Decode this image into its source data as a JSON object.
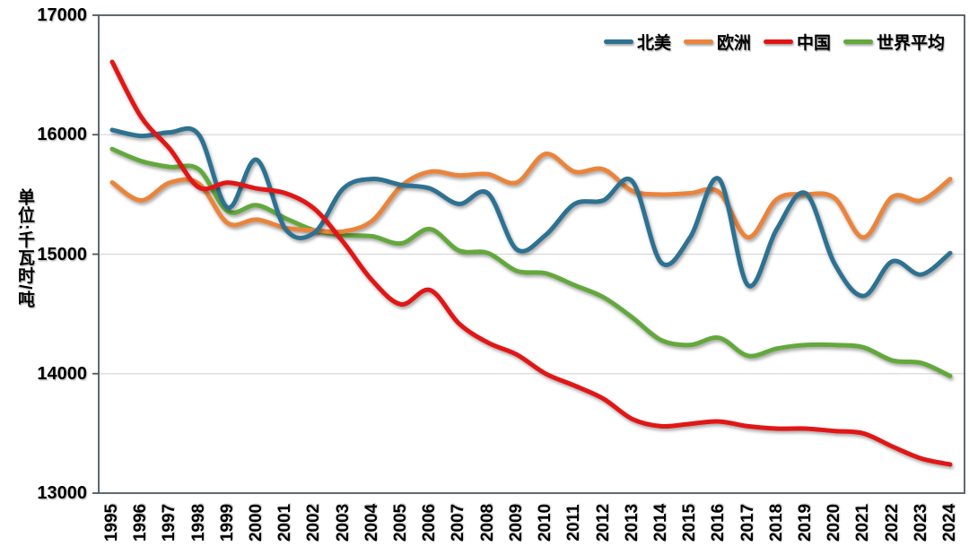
{
  "chart_data": {
    "type": "line",
    "title": "",
    "ylabel": "单位:千瓦时/吨",
    "xlabel": "",
    "ylim": [
      13000,
      17000
    ],
    "yticks": [
      17000,
      16000,
      15000,
      14000,
      13000
    ],
    "grid": "horizontal",
    "legend_position": "top-right",
    "x": [
      1995,
      1996,
      1997,
      1998,
      1999,
      2000,
      2001,
      2002,
      2003,
      2004,
      2005,
      2006,
      2007,
      2008,
      2009,
      2010,
      2011,
      2012,
      2013,
      2014,
      2015,
      2016,
      2017,
      2018,
      2019,
      2020,
      2021,
      2022,
      2023,
      2024
    ],
    "series": [
      {
        "name": "北美",
        "slug": "north-america",
        "color": "#2e7191",
        "values": [
          16040,
          15990,
          16020,
          16000,
          15390,
          15790,
          15210,
          15180,
          15550,
          15630,
          15580,
          15550,
          15420,
          15510,
          15040,
          15160,
          15420,
          15450,
          15610,
          14930,
          15140,
          15630,
          14740,
          15210,
          15510,
          14920,
          14650,
          14940,
          14830,
          15010
        ]
      },
      {
        "name": "欧洲",
        "slug": "europe",
        "color": "#ea843e",
        "values": [
          15600,
          15450,
          15600,
          15590,
          15260,
          15290,
          15220,
          15200,
          15190,
          15280,
          15570,
          15690,
          15660,
          15670,
          15600,
          15840,
          15690,
          15710,
          15530,
          15500,
          15510,
          15520,
          15140,
          15460,
          15500,
          15470,
          15140,
          15480,
          15450,
          15630
        ]
      },
      {
        "name": "中国",
        "slug": "china",
        "color": "#e11414",
        "values": [
          16610,
          16150,
          15880,
          15560,
          15600,
          15550,
          15510,
          15380,
          15100,
          14780,
          14580,
          14700,
          14420,
          14260,
          14160,
          14000,
          13900,
          13790,
          13620,
          13560,
          13580,
          13600,
          13560,
          13540,
          13540,
          13520,
          13500,
          13390,
          13290,
          13240
        ]
      },
      {
        "name": "世界平均",
        "slug": "world-average",
        "color": "#63a83e",
        "values": [
          15880,
          15780,
          15730,
          15710,
          15360,
          15410,
          15300,
          15200,
          15160,
          15150,
          15090,
          15210,
          15030,
          15010,
          14860,
          14840,
          14740,
          14640,
          14470,
          14280,
          14240,
          14300,
          14150,
          14210,
          14240,
          14240,
          14220,
          14110,
          14090,
          13980
        ]
      }
    ],
    "draw_order": [
      "world-average",
      "europe",
      "north-america",
      "china"
    ]
  },
  "colors": {
    "background": "#ffffff",
    "axis_border": "#4d5a5e",
    "gridline": "#d9d9d9",
    "text": "#000000"
  }
}
